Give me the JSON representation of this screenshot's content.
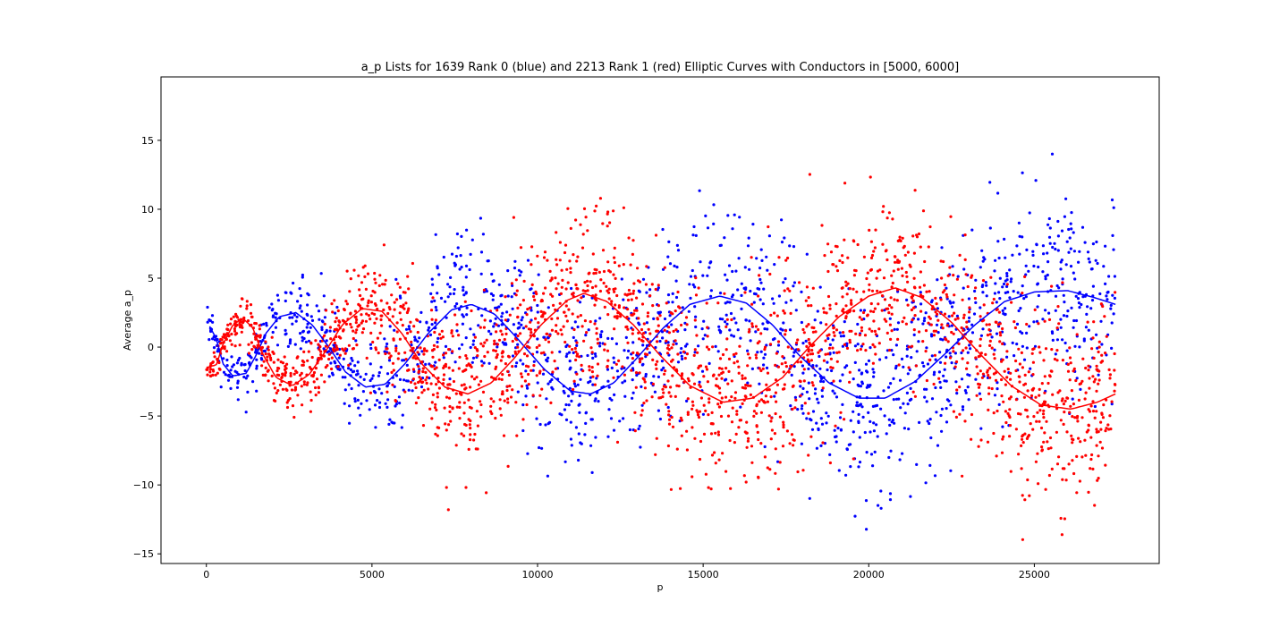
{
  "chart_data": {
    "type": "scatter",
    "title": "a_p Lists for 1639 Rank 0 (blue) and 2213 Rank 1 (red) Elliptic Curves with Conductors in [5000, 6000]",
    "xlabel": "p",
    "ylabel": "Average a_p",
    "xlim": [
      -1370,
      28770
    ],
    "ylim": [
      -15.7,
      19.6
    ],
    "grid": false,
    "legend": "none",
    "x_ticks": [
      0,
      5000,
      10000,
      15000,
      20000,
      25000
    ],
    "y_ticks": [
      -15,
      -10,
      -5,
      0,
      5,
      10,
      15
    ],
    "x_range_of_data": [
      2,
      27449
    ],
    "series": [
      {
        "color": "#0000ff",
        "kind": "scatter",
        "description_of_envelope": "oscillates with growing amplitude around a_p/sqrt-like sine",
        "fit_curve": [
          [
            100,
            1.5
          ],
          [
            300,
            0.6
          ],
          [
            500,
            -1.2
          ],
          [
            800,
            -2.1
          ],
          [
            1200,
            -1.9
          ],
          [
            1500,
            -0.6
          ],
          [
            1800,
            1.0
          ],
          [
            2200,
            2.2
          ],
          [
            2700,
            2.5
          ],
          [
            3200,
            1.6
          ],
          [
            3700,
            0.0
          ],
          [
            4200,
            -1.8
          ],
          [
            4800,
            -2.9
          ],
          [
            5400,
            -2.7
          ],
          [
            6000,
            -1.2
          ],
          [
            6700,
            1.0
          ],
          [
            7400,
            2.7
          ],
          [
            8000,
            3.1
          ],
          [
            8700,
            2.4
          ],
          [
            9400,
            0.6
          ],
          [
            10200,
            -1.6
          ],
          [
            11000,
            -3.2
          ],
          [
            11600,
            -3.4
          ],
          [
            12300,
            -2.6
          ],
          [
            13000,
            -0.8
          ],
          [
            13800,
            1.4
          ],
          [
            14600,
            3.1
          ],
          [
            15500,
            3.7
          ],
          [
            16300,
            3.2
          ],
          [
            17100,
            1.6
          ],
          [
            17900,
            -0.6
          ],
          [
            18800,
            -2.6
          ],
          [
            19700,
            -3.7
          ],
          [
            20500,
            -3.7
          ],
          [
            21400,
            -2.5
          ],
          [
            22300,
            -0.5
          ],
          [
            23200,
            1.6
          ],
          [
            24100,
            3.3
          ],
          [
            25000,
            4.0
          ],
          [
            26000,
            4.1
          ],
          [
            26800,
            3.6
          ],
          [
            27450,
            3.1
          ]
        ]
      },
      {
        "color": "#ff0000",
        "kind": "scatter",
        "fit_curve": [
          [
            100,
            -1.4
          ],
          [
            300,
            -1.3
          ],
          [
            500,
            0.2
          ],
          [
            800,
            1.6
          ],
          [
            1100,
            2.1
          ],
          [
            1400,
            1.4
          ],
          [
            1700,
            -0.5
          ],
          [
            2100,
            -2.2
          ],
          [
            2600,
            -2.8
          ],
          [
            3100,
            -2.0
          ],
          [
            3600,
            -0.3
          ],
          [
            4100,
            1.6
          ],
          [
            4700,
            2.8
          ],
          [
            5300,
            2.6
          ],
          [
            5900,
            1.0
          ],
          [
            6500,
            -1.2
          ],
          [
            7200,
            -2.9
          ],
          [
            7900,
            -3.4
          ],
          [
            8600,
            -2.6
          ],
          [
            9300,
            -0.8
          ],
          [
            10100,
            1.6
          ],
          [
            10900,
            3.4
          ],
          [
            11400,
            3.9
          ],
          [
            12100,
            3.3
          ],
          [
            12900,
            1.6
          ],
          [
            13700,
            -0.6
          ],
          [
            14600,
            -2.8
          ],
          [
            15600,
            -4.0
          ],
          [
            16500,
            -3.7
          ],
          [
            17400,
            -2.2
          ],
          [
            18200,
            0.0
          ],
          [
            19100,
            2.2
          ],
          [
            20000,
            3.7
          ],
          [
            20800,
            4.3
          ],
          [
            21600,
            3.6
          ],
          [
            22500,
            1.8
          ],
          [
            23400,
            -0.6
          ],
          [
            24300,
            -2.8
          ],
          [
            25200,
            -4.2
          ],
          [
            26100,
            -4.5
          ],
          [
            26900,
            -4.0
          ],
          [
            27450,
            -3.4
          ]
        ]
      }
    ]
  }
}
